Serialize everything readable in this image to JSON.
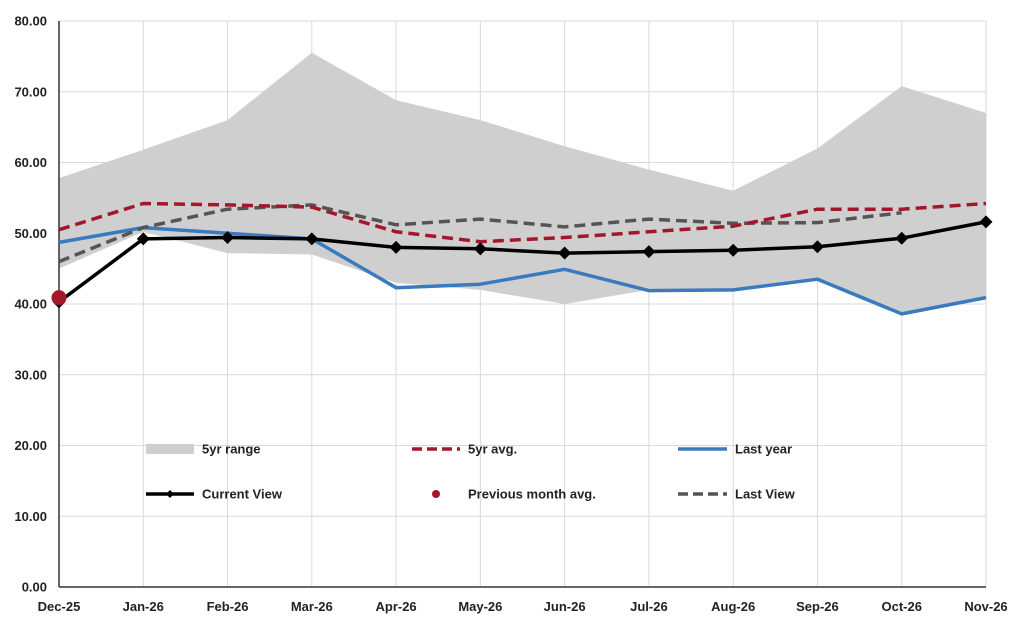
{
  "chart_data": {
    "type": "line",
    "title": "",
    "xlabel": "",
    "ylabel": "",
    "categories": [
      "Dec-25",
      "Jan-26",
      "Feb-26",
      "Mar-26",
      "Apr-26",
      "May-26",
      "Jun-26",
      "Jul-26",
      "Aug-26",
      "Sep-26",
      "Oct-26",
      "Nov-26"
    ],
    "y_ticks": [
      "0.00",
      "10.00",
      "20.00",
      "30.00",
      "40.00",
      "50.00",
      "60.00",
      "70.00",
      "80.00"
    ],
    "ylim": [
      0,
      80
    ],
    "grid": true,
    "legend_position": "inside-bottom",
    "range": {
      "name": "5yr range",
      "color": "#d0cfd0",
      "low": [
        45.0,
        50.2,
        47.2,
        47.0,
        43.0,
        42.0,
        40.0,
        42.0,
        42.0,
        43.5,
        38.5,
        41.0
      ],
      "high": [
        57.8,
        61.8,
        66.0,
        75.5,
        68.8,
        66.0,
        62.3,
        59.0,
        56.0,
        62.0,
        70.8,
        67.0
      ]
    },
    "series": [
      {
        "name": "5yr avg.",
        "style": "dashed",
        "color": "#a3172b",
        "values": [
          50.5,
          54.2,
          54.0,
          53.7,
          50.2,
          48.8,
          49.4,
          50.2,
          51.0,
          53.4,
          53.4,
          54.2
        ]
      },
      {
        "name": "Last year",
        "style": "solid",
        "color": "#3a7abf",
        "values": [
          48.7,
          50.8,
          50.0,
          49.2,
          42.3,
          42.8,
          44.9,
          41.9,
          42.0,
          43.5,
          38.6,
          40.9
        ]
      },
      {
        "name": "Current View",
        "style": "solid-markers",
        "color": "#000000",
        "values": [
          40.3,
          49.2,
          49.4,
          49.2,
          48.0,
          47.8,
          47.2,
          47.4,
          47.6,
          48.1,
          49.3,
          51.6
        ]
      },
      {
        "name": "Last View",
        "style": "dashed",
        "color": "#555555",
        "values": [
          46.0,
          50.8,
          53.4,
          54.0,
          51.2,
          52.0,
          50.9,
          52.0,
          51.4,
          51.5,
          52.9,
          null
        ]
      }
    ],
    "points": [
      {
        "name": "Previous month avg.",
        "color": "#a3172b",
        "category": "Dec-25",
        "value": 40.9
      }
    ]
  }
}
